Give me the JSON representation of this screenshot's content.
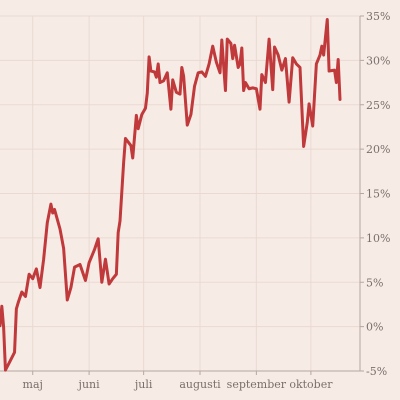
{
  "chart_data": {
    "type": "line",
    "title": "",
    "xlabel": "",
    "ylabel": "",
    "grid": true,
    "ylim": [
      -5,
      35
    ],
    "y_ticks": [
      {
        "value": 35,
        "label": "35%"
      },
      {
        "value": 30,
        "label": "30%"
      },
      {
        "value": 25,
        "label": "25%"
      },
      {
        "value": 20,
        "label": "20%"
      },
      {
        "value": 15,
        "label": "15%"
      },
      {
        "value": 10,
        "label": "10%"
      },
      {
        "value": 5,
        "label": "5%"
      },
      {
        "value": 0,
        "label": "0%"
      },
      {
        "value": -5,
        "label": "-5%"
      }
    ],
    "xlim": [
      "2022-04-13",
      "2022-10-28"
    ],
    "x_ticks": [
      {
        "value": "2022-05-01",
        "label": "maj"
      },
      {
        "value": "2022-06-01",
        "label": "juni"
      },
      {
        "value": "2022-07-01",
        "label": "juli"
      },
      {
        "value": "2022-08-01",
        "label": "augusti"
      },
      {
        "value": "2022-09-01",
        "label": "september"
      },
      {
        "value": "2022-10-01",
        "label": "oktober"
      }
    ],
    "series": [
      {
        "color": "#c0393b",
        "points": [
          [
            "2022-04-13",
            0.1
          ],
          [
            "2022-04-14",
            2.3
          ],
          [
            "2022-04-15",
            -0.1
          ],
          [
            "2022-04-16",
            -4.9
          ],
          [
            "2022-04-18",
            -4.1
          ],
          [
            "2022-04-21",
            -2.9
          ],
          [
            "2022-04-22",
            2.0
          ],
          [
            "2022-04-23",
            2.7
          ],
          [
            "2022-04-25",
            3.9
          ],
          [
            "2022-04-27",
            3.4
          ],
          [
            "2022-04-29",
            5.9
          ],
          [
            "2022-05-01",
            5.4
          ],
          [
            "2022-05-03",
            6.5
          ],
          [
            "2022-05-05",
            4.4
          ],
          [
            "2022-05-07",
            7.6
          ],
          [
            "2022-05-09",
            11.7
          ],
          [
            "2022-05-11",
            13.8
          ],
          [
            "2022-05-12",
            12.8
          ],
          [
            "2022-05-13",
            13.2
          ],
          [
            "2022-05-16",
            11.0
          ],
          [
            "2022-05-18",
            8.8
          ],
          [
            "2022-05-20",
            3.0
          ],
          [
            "2022-05-22",
            4.4
          ],
          [
            "2022-05-24",
            6.7
          ],
          [
            "2022-05-27",
            7.0
          ],
          [
            "2022-05-30",
            5.2
          ],
          [
            "2022-06-01",
            7.2
          ],
          [
            "2022-06-04",
            8.7
          ],
          [
            "2022-06-06",
            9.9
          ],
          [
            "2022-06-08",
            5.0
          ],
          [
            "2022-06-10",
            7.6
          ],
          [
            "2022-06-12",
            4.8
          ],
          [
            "2022-06-14",
            5.4
          ],
          [
            "2022-06-16",
            5.9
          ],
          [
            "2022-06-17",
            10.6
          ],
          [
            "2022-06-18",
            11.9
          ],
          [
            "2022-06-20",
            18.5
          ],
          [
            "2022-06-21",
            21.2
          ],
          [
            "2022-06-24",
            20.4
          ],
          [
            "2022-06-25",
            19.0
          ],
          [
            "2022-06-27",
            23.8
          ],
          [
            "2022-06-28",
            22.3
          ],
          [
            "2022-06-30",
            23.9
          ],
          [
            "2022-07-02",
            24.6
          ],
          [
            "2022-07-03",
            26.3
          ],
          [
            "2022-07-04",
            30.4
          ],
          [
            "2022-07-05",
            28.8
          ],
          [
            "2022-07-07",
            28.7
          ],
          [
            "2022-07-08",
            28.1
          ],
          [
            "2022-07-09",
            29.6
          ],
          [
            "2022-07-10",
            27.5
          ],
          [
            "2022-07-12",
            27.7
          ],
          [
            "2022-07-14",
            28.6
          ],
          [
            "2022-07-16",
            24.5
          ],
          [
            "2022-07-17",
            27.8
          ],
          [
            "2022-07-19",
            26.4
          ],
          [
            "2022-07-21",
            26.2
          ],
          [
            "2022-07-22",
            29.2
          ],
          [
            "2022-07-23",
            28.2
          ],
          [
            "2022-07-25",
            22.7
          ],
          [
            "2022-07-27",
            23.9
          ],
          [
            "2022-07-29",
            27.1
          ],
          [
            "2022-07-31",
            28.6
          ],
          [
            "2022-08-02",
            28.7
          ],
          [
            "2022-08-04",
            28.2
          ],
          [
            "2022-08-06",
            29.6
          ],
          [
            "2022-08-08",
            31.6
          ],
          [
            "2022-08-10",
            29.8
          ],
          [
            "2022-08-12",
            28.6
          ],
          [
            "2022-08-13",
            32.3
          ],
          [
            "2022-08-15",
            26.6
          ],
          [
            "2022-08-16",
            32.4
          ],
          [
            "2022-08-18",
            31.9
          ],
          [
            "2022-08-19",
            30.2
          ],
          [
            "2022-08-20",
            31.7
          ],
          [
            "2022-08-22",
            29.2
          ],
          [
            "2022-08-23",
            29.6
          ],
          [
            "2022-08-24",
            31.4
          ],
          [
            "2022-08-25",
            26.6
          ],
          [
            "2022-08-26",
            27.5
          ],
          [
            "2022-08-28",
            26.8
          ],
          [
            "2022-08-30",
            26.9
          ],
          [
            "2022-09-01",
            26.8
          ],
          [
            "2022-09-03",
            24.5
          ],
          [
            "2022-09-04",
            28.4
          ],
          [
            "2022-09-06",
            27.5
          ],
          [
            "2022-09-08",
            32.4
          ],
          [
            "2022-09-10",
            26.7
          ],
          [
            "2022-09-11",
            31.5
          ],
          [
            "2022-09-13",
            30.6
          ],
          [
            "2022-09-15",
            28.9
          ],
          [
            "2022-09-17",
            30.2
          ],
          [
            "2022-09-19",
            25.3
          ],
          [
            "2022-09-21",
            30.3
          ],
          [
            "2022-09-23",
            29.6
          ],
          [
            "2022-09-25",
            29.2
          ],
          [
            "2022-09-27",
            20.3
          ],
          [
            "2022-09-29",
            23.0
          ],
          [
            "2022-09-30",
            25.1
          ],
          [
            "2022-10-02",
            22.6
          ],
          [
            "2022-10-04",
            29.6
          ],
          [
            "2022-10-06",
            30.6
          ],
          [
            "2022-10-07",
            31.6
          ],
          [
            "2022-10-08",
            30.6
          ],
          [
            "2022-10-10",
            34.6
          ],
          [
            "2022-10-11",
            28.8
          ],
          [
            "2022-10-14",
            28.9
          ],
          [
            "2022-10-15",
            27.5
          ],
          [
            "2022-10-16",
            30.1
          ],
          [
            "2022-10-17",
            25.6
          ]
        ]
      }
    ]
  }
}
